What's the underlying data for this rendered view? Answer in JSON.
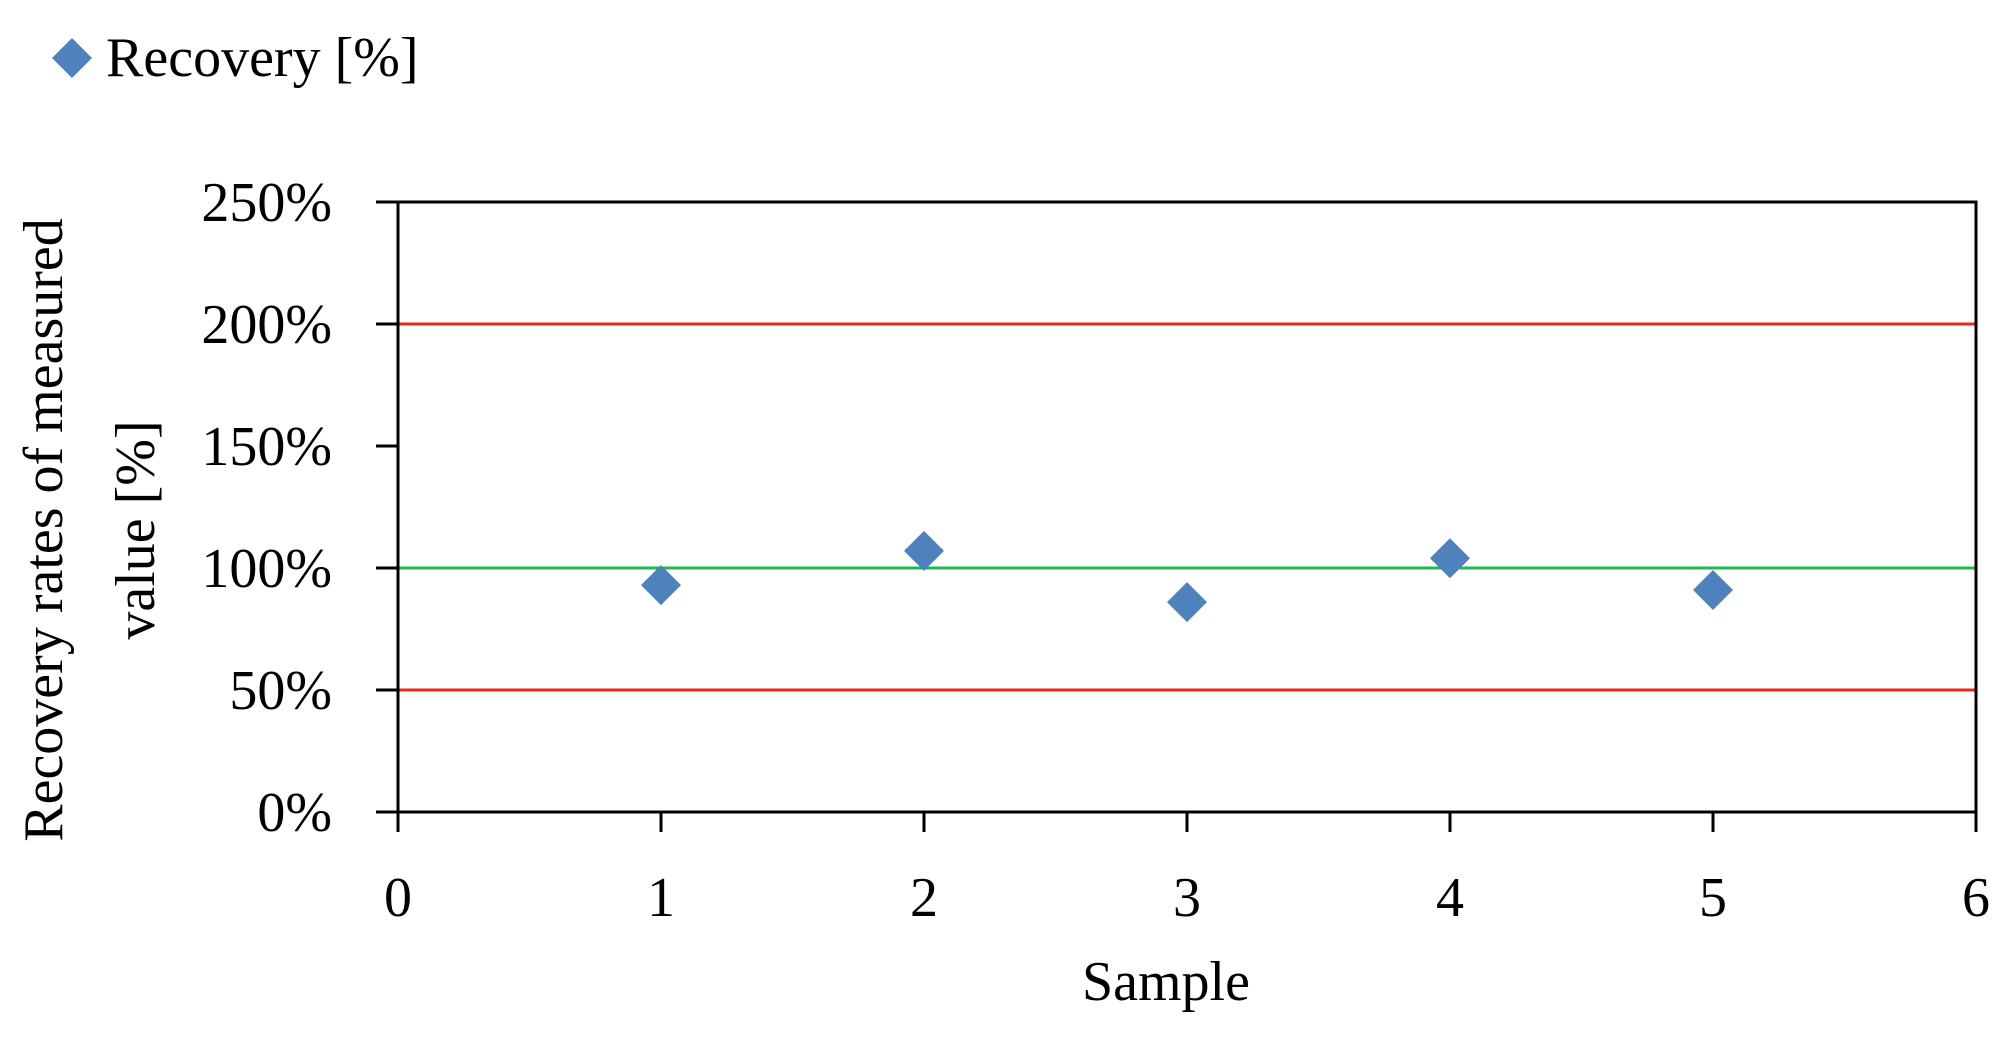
{
  "chart_data": {
    "type": "scatter",
    "title": "",
    "xlabel": "Sample",
    "ylabel": "Recovery rates of measured value [%]",
    "ylabel_lines": [
      "Recovery rates of measured",
      "value [%]"
    ],
    "xlim": [
      0,
      6
    ],
    "ylim": [
      0,
      2.5
    ],
    "x_ticks": [
      0,
      1,
      2,
      3,
      4,
      5,
      6
    ],
    "x_tick_labels": [
      "0",
      "1",
      "2",
      "3",
      "4",
      "5",
      "6"
    ],
    "y_ticks": [
      0,
      0.5,
      1.0,
      1.5,
      2.0,
      2.5
    ],
    "y_tick_labels": [
      "0%",
      "50%",
      "100%",
      "150%",
      "200%",
      "250%"
    ],
    "grid": false,
    "legend_position": "top-left",
    "series": [
      {
        "name": "Recovery [%]",
        "marker": "diamond",
        "color": "#4F81BD",
        "x": [
          1,
          2,
          3,
          4,
          5
        ],
        "y": [
          0.93,
          1.07,
          0.86,
          1.04,
          0.91
        ]
      }
    ],
    "reference_lines": [
      {
        "y": 2.0,
        "color": "#E8281E"
      },
      {
        "y": 1.0,
        "color": "#1DB954"
      },
      {
        "y": 0.5,
        "color": "#E8281E"
      }
    ]
  }
}
